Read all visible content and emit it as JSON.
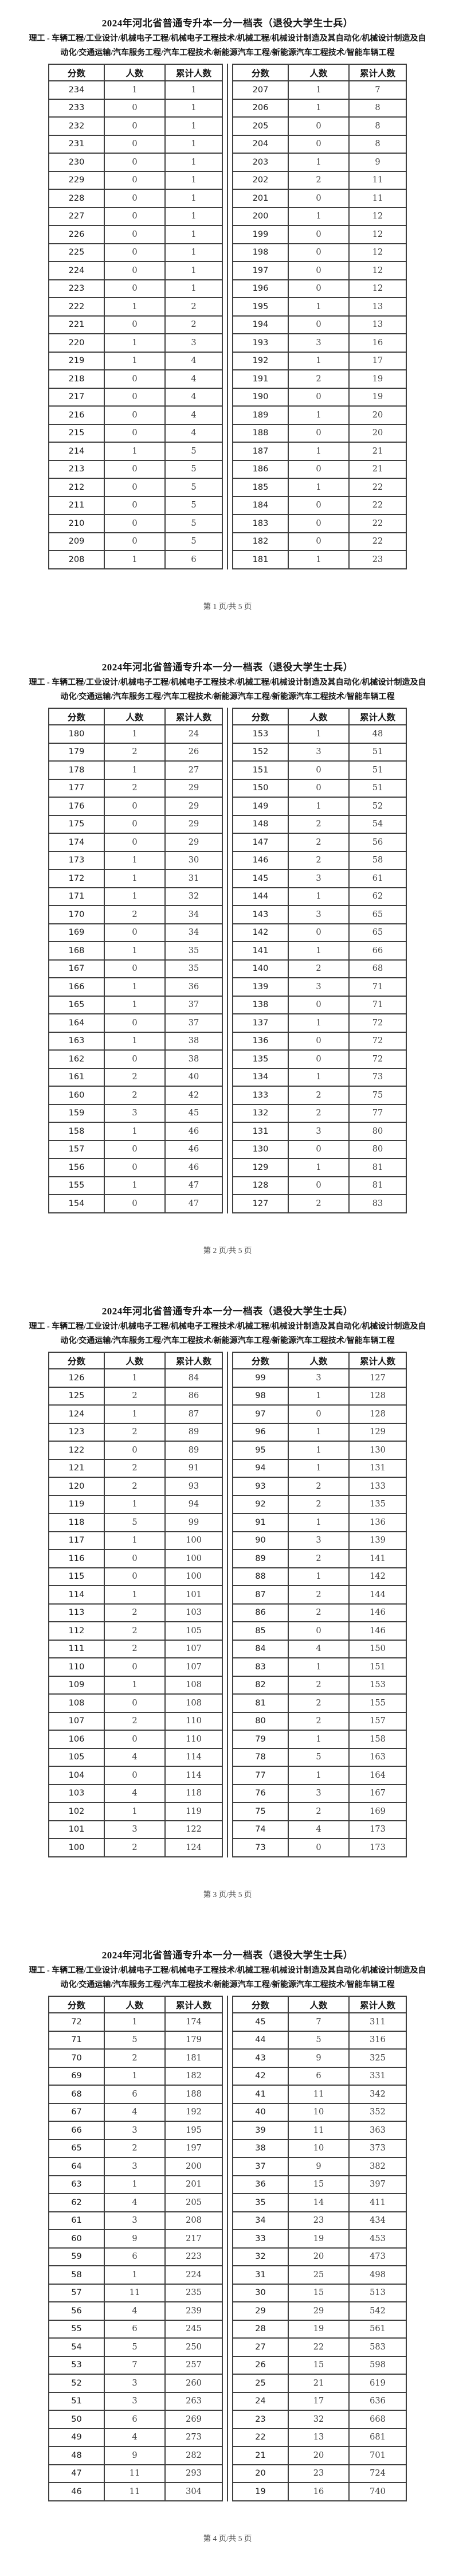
{
  "document": {
    "title": "2024年河北省普通专升本一分一档表（退役大学生士兵）",
    "subtitle": "理工 - 车辆工程/工业设计/机械电子工程/机械电子工程技术/机械工程/机械设计制造及其自动化/机械设计制造及自动化/交通运输/汽车服务工程/汽车工程技术/新能源汽车工程/新能源汽车工程技术/智能车辆工程",
    "columns": [
      "分数",
      "人数",
      "累计人数"
    ],
    "pages": [
      {
        "footer": "第 1 页/共 5 页",
        "left_rows": [
          [
            234,
            1,
            1
          ],
          [
            233,
            0,
            1
          ],
          [
            232,
            0,
            1
          ],
          [
            231,
            0,
            1
          ],
          [
            230,
            0,
            1
          ],
          [
            229,
            0,
            1
          ],
          [
            228,
            0,
            1
          ],
          [
            227,
            0,
            1
          ],
          [
            226,
            0,
            1
          ],
          [
            225,
            0,
            1
          ],
          [
            224,
            0,
            1
          ],
          [
            223,
            0,
            1
          ],
          [
            222,
            1,
            2
          ],
          [
            221,
            0,
            2
          ],
          [
            220,
            1,
            3
          ],
          [
            219,
            1,
            4
          ],
          [
            218,
            0,
            4
          ],
          [
            217,
            0,
            4
          ],
          [
            216,
            0,
            4
          ],
          [
            215,
            0,
            4
          ],
          [
            214,
            1,
            5
          ],
          [
            213,
            0,
            5
          ],
          [
            212,
            0,
            5
          ],
          [
            211,
            0,
            5
          ],
          [
            210,
            0,
            5
          ],
          [
            209,
            0,
            5
          ],
          [
            208,
            1,
            6
          ]
        ],
        "right_rows": [
          [
            207,
            1,
            7
          ],
          [
            206,
            1,
            8
          ],
          [
            205,
            0,
            8
          ],
          [
            204,
            0,
            8
          ],
          [
            203,
            1,
            9
          ],
          [
            202,
            2,
            11
          ],
          [
            201,
            0,
            11
          ],
          [
            200,
            1,
            12
          ],
          [
            199,
            0,
            12
          ],
          [
            198,
            0,
            12
          ],
          [
            197,
            0,
            12
          ],
          [
            196,
            0,
            12
          ],
          [
            195,
            1,
            13
          ],
          [
            194,
            0,
            13
          ],
          [
            193,
            3,
            16
          ],
          [
            192,
            1,
            17
          ],
          [
            191,
            2,
            19
          ],
          [
            190,
            0,
            19
          ],
          [
            189,
            1,
            20
          ],
          [
            188,
            0,
            20
          ],
          [
            187,
            1,
            21
          ],
          [
            186,
            0,
            21
          ],
          [
            185,
            1,
            22
          ],
          [
            184,
            0,
            22
          ],
          [
            183,
            0,
            22
          ],
          [
            182,
            0,
            22
          ],
          [
            181,
            1,
            23
          ]
        ]
      },
      {
        "footer": "第 2 页/共 5 页",
        "left_rows": [
          [
            180,
            1,
            24
          ],
          [
            179,
            2,
            26
          ],
          [
            178,
            1,
            27
          ],
          [
            177,
            2,
            29
          ],
          [
            176,
            0,
            29
          ],
          [
            175,
            0,
            29
          ],
          [
            174,
            0,
            29
          ],
          [
            173,
            1,
            30
          ],
          [
            172,
            1,
            31
          ],
          [
            171,
            1,
            32
          ],
          [
            170,
            2,
            34
          ],
          [
            169,
            0,
            34
          ],
          [
            168,
            1,
            35
          ],
          [
            167,
            0,
            35
          ],
          [
            166,
            1,
            36
          ],
          [
            165,
            1,
            37
          ],
          [
            164,
            0,
            37
          ],
          [
            163,
            1,
            38
          ],
          [
            162,
            0,
            38
          ],
          [
            161,
            2,
            40
          ],
          [
            160,
            2,
            42
          ],
          [
            159,
            3,
            45
          ],
          [
            158,
            1,
            46
          ],
          [
            157,
            0,
            46
          ],
          [
            156,
            0,
            46
          ],
          [
            155,
            1,
            47
          ],
          [
            154,
            0,
            47
          ]
        ],
        "right_rows": [
          [
            153,
            1,
            48
          ],
          [
            152,
            3,
            51
          ],
          [
            151,
            0,
            51
          ],
          [
            150,
            0,
            51
          ],
          [
            149,
            1,
            52
          ],
          [
            148,
            2,
            54
          ],
          [
            147,
            2,
            56
          ],
          [
            146,
            2,
            58
          ],
          [
            145,
            3,
            61
          ],
          [
            144,
            1,
            62
          ],
          [
            143,
            3,
            65
          ],
          [
            142,
            0,
            65
          ],
          [
            141,
            1,
            66
          ],
          [
            140,
            2,
            68
          ],
          [
            139,
            3,
            71
          ],
          [
            138,
            0,
            71
          ],
          [
            137,
            1,
            72
          ],
          [
            136,
            0,
            72
          ],
          [
            135,
            0,
            72
          ],
          [
            134,
            1,
            73
          ],
          [
            133,
            2,
            75
          ],
          [
            132,
            2,
            77
          ],
          [
            131,
            3,
            80
          ],
          [
            130,
            0,
            80
          ],
          [
            129,
            1,
            81
          ],
          [
            128,
            0,
            81
          ],
          [
            127,
            2,
            83
          ]
        ]
      },
      {
        "footer": "第 3 页/共 5 页",
        "left_rows": [
          [
            126,
            1,
            84
          ],
          [
            125,
            2,
            86
          ],
          [
            124,
            1,
            87
          ],
          [
            123,
            2,
            89
          ],
          [
            122,
            0,
            89
          ],
          [
            121,
            2,
            91
          ],
          [
            120,
            2,
            93
          ],
          [
            119,
            1,
            94
          ],
          [
            118,
            5,
            99
          ],
          [
            117,
            1,
            100
          ],
          [
            116,
            0,
            100
          ],
          [
            115,
            0,
            100
          ],
          [
            114,
            1,
            101
          ],
          [
            113,
            2,
            103
          ],
          [
            112,
            2,
            105
          ],
          [
            111,
            2,
            107
          ],
          [
            110,
            0,
            107
          ],
          [
            109,
            1,
            108
          ],
          [
            108,
            0,
            108
          ],
          [
            107,
            2,
            110
          ],
          [
            106,
            0,
            110
          ],
          [
            105,
            4,
            114
          ],
          [
            104,
            0,
            114
          ],
          [
            103,
            4,
            118
          ],
          [
            102,
            1,
            119
          ],
          [
            101,
            3,
            122
          ],
          [
            100,
            2,
            124
          ]
        ],
        "right_rows": [
          [
            99,
            3,
            127
          ],
          [
            98,
            1,
            128
          ],
          [
            97,
            0,
            128
          ],
          [
            96,
            1,
            129
          ],
          [
            95,
            1,
            130
          ],
          [
            94,
            1,
            131
          ],
          [
            93,
            2,
            133
          ],
          [
            92,
            2,
            135
          ],
          [
            91,
            1,
            136
          ],
          [
            90,
            3,
            139
          ],
          [
            89,
            2,
            141
          ],
          [
            88,
            1,
            142
          ],
          [
            87,
            2,
            144
          ],
          [
            86,
            2,
            146
          ],
          [
            85,
            0,
            146
          ],
          [
            84,
            4,
            150
          ],
          [
            83,
            1,
            151
          ],
          [
            82,
            2,
            153
          ],
          [
            81,
            2,
            155
          ],
          [
            80,
            2,
            157
          ],
          [
            79,
            1,
            158
          ],
          [
            78,
            5,
            163
          ],
          [
            77,
            1,
            164
          ],
          [
            76,
            3,
            167
          ],
          [
            75,
            2,
            169
          ],
          [
            74,
            4,
            173
          ],
          [
            73,
            0,
            173
          ]
        ]
      },
      {
        "footer": "第 4 页/共 5 页",
        "left_rows": [
          [
            72,
            1,
            174
          ],
          [
            71,
            5,
            179
          ],
          [
            70,
            2,
            181
          ],
          [
            69,
            1,
            182
          ],
          [
            68,
            6,
            188
          ],
          [
            67,
            4,
            192
          ],
          [
            66,
            3,
            195
          ],
          [
            65,
            2,
            197
          ],
          [
            64,
            3,
            200
          ],
          [
            63,
            1,
            201
          ],
          [
            62,
            4,
            205
          ],
          [
            61,
            3,
            208
          ],
          [
            60,
            9,
            217
          ],
          [
            59,
            6,
            223
          ],
          [
            58,
            1,
            224
          ],
          [
            57,
            11,
            235
          ],
          [
            56,
            4,
            239
          ],
          [
            55,
            6,
            245
          ],
          [
            54,
            5,
            250
          ],
          [
            53,
            7,
            257
          ],
          [
            52,
            3,
            260
          ],
          [
            51,
            3,
            263
          ],
          [
            50,
            6,
            269
          ],
          [
            49,
            4,
            273
          ],
          [
            48,
            9,
            282
          ],
          [
            47,
            11,
            293
          ],
          [
            46,
            11,
            304
          ]
        ],
        "right_rows": [
          [
            45,
            7,
            311
          ],
          [
            44,
            5,
            316
          ],
          [
            43,
            9,
            325
          ],
          [
            42,
            6,
            331
          ],
          [
            41,
            11,
            342
          ],
          [
            40,
            10,
            352
          ],
          [
            39,
            11,
            363
          ],
          [
            38,
            10,
            373
          ],
          [
            37,
            9,
            382
          ],
          [
            36,
            15,
            397
          ],
          [
            35,
            14,
            411
          ],
          [
            34,
            23,
            434
          ],
          [
            33,
            19,
            453
          ],
          [
            32,
            20,
            473
          ],
          [
            31,
            25,
            498
          ],
          [
            30,
            15,
            513
          ],
          [
            29,
            29,
            542
          ],
          [
            28,
            19,
            561
          ],
          [
            27,
            22,
            583
          ],
          [
            26,
            15,
            598
          ],
          [
            25,
            21,
            619
          ],
          [
            24,
            17,
            636
          ],
          [
            23,
            32,
            668
          ],
          [
            22,
            13,
            681
          ],
          [
            21,
            20,
            701
          ],
          [
            20,
            23,
            724
          ],
          [
            19,
            16,
            740
          ]
        ]
      }
    ]
  }
}
